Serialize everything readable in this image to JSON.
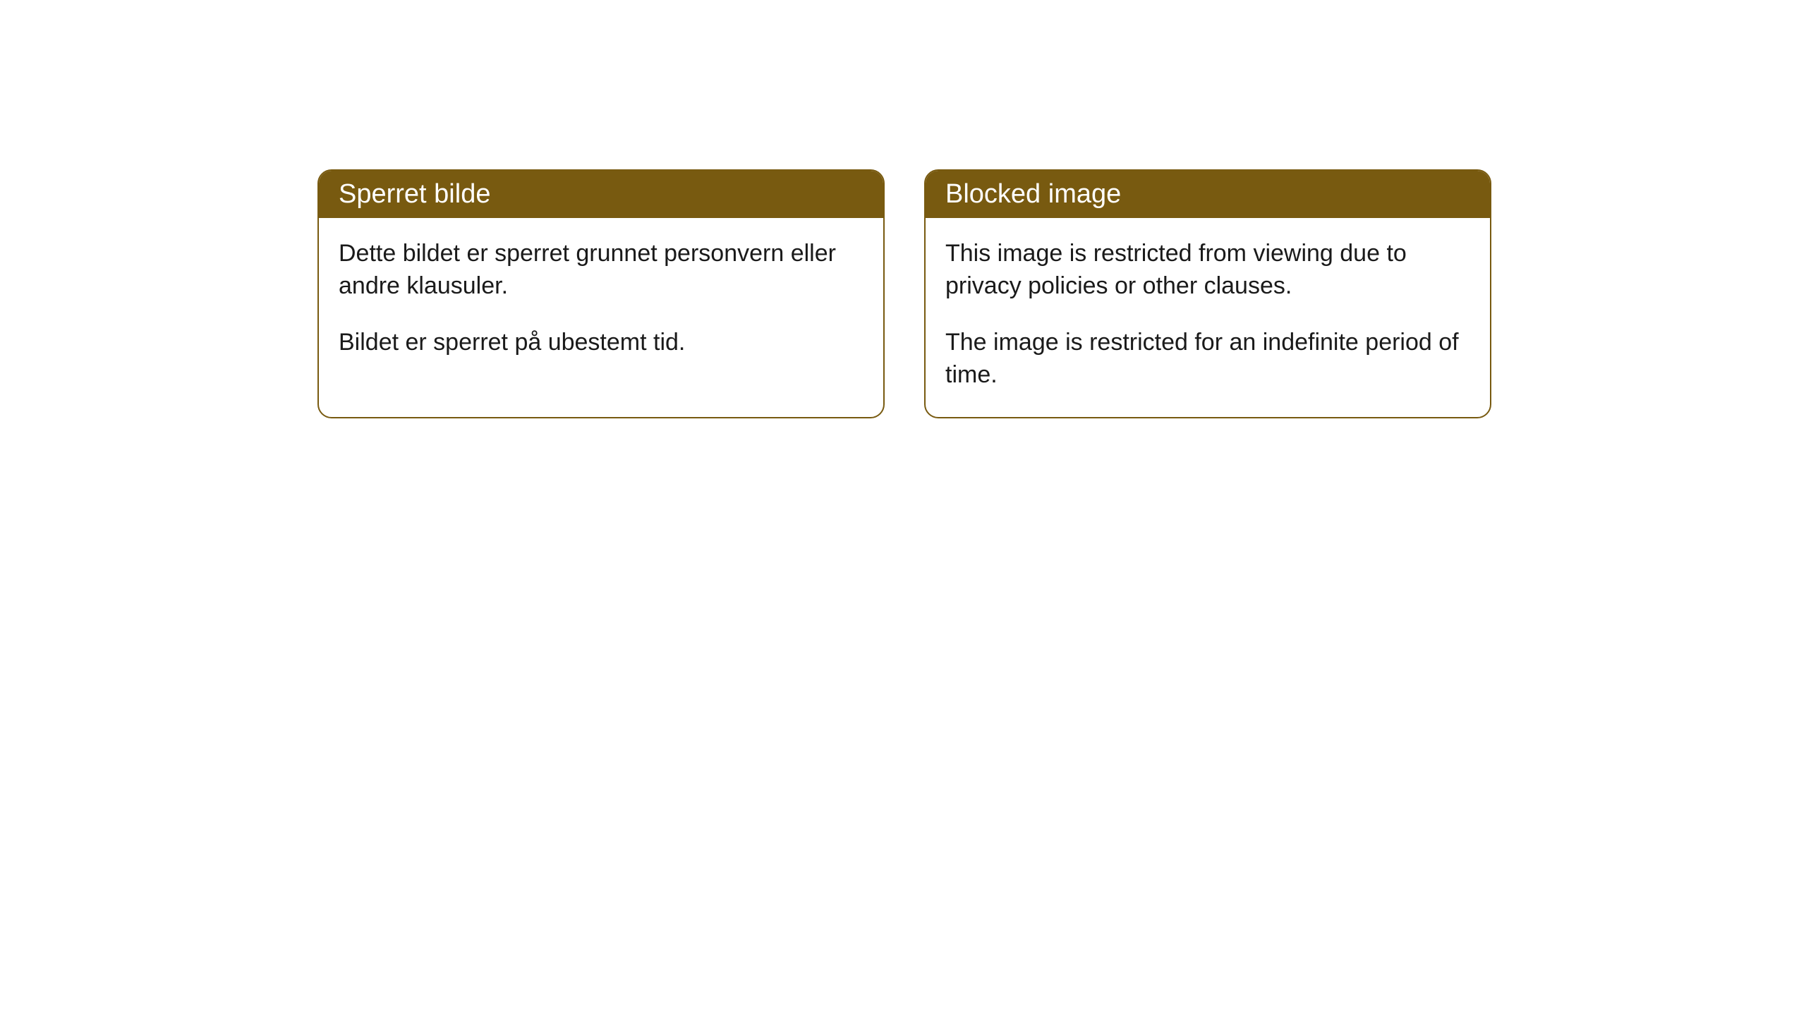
{
  "cards": [
    {
      "title": "Sperret bilde",
      "paragraph1": "Dette bildet er sperret grunnet personvern eller andre klausuler.",
      "paragraph2": "Bildet er sperret på ubestemt tid."
    },
    {
      "title": "Blocked image",
      "paragraph1": "This image is restricted from viewing due to privacy policies or other clauses.",
      "paragraph2": "The image is restricted for an indefinite period of time."
    }
  ],
  "colors": {
    "header_background": "#785a10",
    "header_text": "#ffffff",
    "border": "#785a10",
    "body_background": "#ffffff",
    "body_text": "#1a1a1a"
  }
}
